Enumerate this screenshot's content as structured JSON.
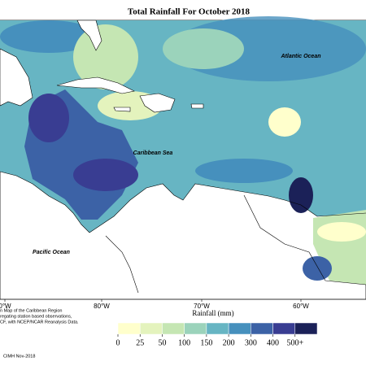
{
  "header": {
    "title": "Total Rainfall For October 2018"
  },
  "map": {
    "labels": [
      "Atlantic Ocean",
      "Caribbean Sea",
      "Pacific Ocean"
    ],
    "longitudes": [
      "0°W",
      "80°W",
      "70°W",
      "60°W"
    ]
  },
  "legend": {
    "title": "Rainfall (mm)",
    "ticks": [
      0,
      25,
      50,
      100,
      150,
      200,
      300,
      400,
      {
        "value": 500,
        "label": "500+"
      }
    ],
    "colors": [
      "#ffffcc",
      "#e4f3bd",
      "#c5e6b3",
      "#9bd3bb",
      "#67b5c3",
      "#4690bd",
      "#3c62a6",
      "#393d92",
      "#1b2158"
    ]
  },
  "caption": [
    "n Map of the Caribbean Region",
    "regating station based observations,",
    "CF, with NCEP/NCAR Reanalysis Data.",
    "CIMH Nov-2018"
  ]
}
